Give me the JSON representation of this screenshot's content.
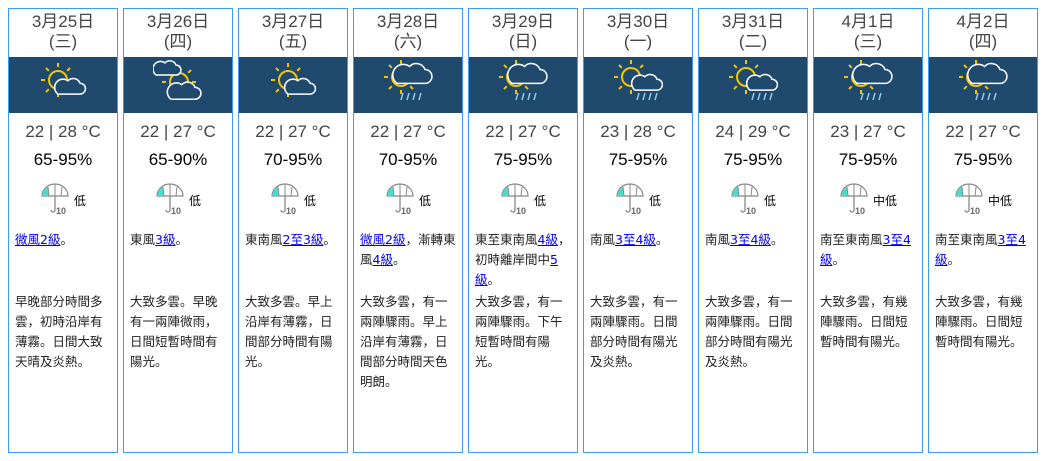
{
  "colors": {
    "border": "#3d9bf0",
    "icon_band": "#1f4a6e",
    "link": "#0000ee",
    "sun": "#f2c500",
    "psr_fill": "#40e0d0"
  },
  "days": [
    {
      "date": "3月25日",
      "weekday": "(三)",
      "icon": "sunny-periods",
      "temp": "22 | 28 °C",
      "rh": "65-95%",
      "psr": "低",
      "wind": [
        {
          "t": "微風2級",
          "link": true
        },
        {
          "t": "。"
        }
      ],
      "desc": "早晚部分時間多雲，初時沿岸有薄霧。日間大致天晴及炎熱。"
    },
    {
      "date": "3月26日",
      "weekday": "(四)",
      "icon": "sunny-intervals",
      "temp": "22 | 27 °C",
      "rh": "65-90%",
      "psr": "低",
      "wind": [
        {
          "t": "東風"
        },
        {
          "t": "3級",
          "link": true
        },
        {
          "t": "。"
        }
      ],
      "desc": "大致多雲。早晚有一兩陣微雨，日間短暫時間有陽光。"
    },
    {
      "date": "3月27日",
      "weekday": "(五)",
      "icon": "sunny-periods",
      "temp": "22 | 27 °C",
      "rh": "70-95%",
      "psr": "低",
      "wind": [
        {
          "t": "東南風"
        },
        {
          "t": "2至3級",
          "link": true
        },
        {
          "t": "。"
        }
      ],
      "desc": "大致多雲。早上沿岸有薄霧，日間部分時間有陽光。"
    },
    {
      "date": "3月28日",
      "weekday": "(六)",
      "icon": "sunny-intervals-showers",
      "temp": "22 | 27 °C",
      "rh": "70-95%",
      "psr": "低",
      "wind": [
        {
          "t": "微風2級",
          "link": true
        },
        {
          "t": "，漸轉東風"
        },
        {
          "t": "4級",
          "link": true
        },
        {
          "t": "。"
        }
      ],
      "desc": "大致多雲，有一兩陣驟雨。早上沿岸有薄霧，日間部分時間天色明朗。"
    },
    {
      "date": "3月29日",
      "weekday": "(日)",
      "icon": "sunny-intervals-showers",
      "temp": "22 | 27 °C",
      "rh": "75-95%",
      "psr": "低",
      "wind": [
        {
          "t": "東至東南風"
        },
        {
          "t": "4級",
          "link": true
        },
        {
          "t": "，初時離岸間中"
        },
        {
          "t": "5級",
          "link": true
        },
        {
          "t": "。"
        }
      ],
      "desc": "大致多雲，有一兩陣驟雨。下午短暫時間有陽光。"
    },
    {
      "date": "3月30日",
      "weekday": "(一)",
      "icon": "sunny-periods-showers",
      "temp": "23 | 28 °C",
      "rh": "75-95%",
      "psr": "低",
      "wind": [
        {
          "t": "南風"
        },
        {
          "t": "3至4級",
          "link": true
        },
        {
          "t": "。"
        }
      ],
      "desc": "大致多雲，有一兩陣驟雨。日間部分時間有陽光及炎熱。"
    },
    {
      "date": "3月31日",
      "weekday": "(二)",
      "icon": "sunny-periods-showers",
      "temp": "24 | 29 °C",
      "rh": "75-95%",
      "psr": "低",
      "wind": [
        {
          "t": "南風"
        },
        {
          "t": "3至4級",
          "link": true
        },
        {
          "t": "。"
        }
      ],
      "desc": "大致多雲，有一兩陣驟雨。日間部分時間有陽光及炎熱。"
    },
    {
      "date": "4月1日",
      "weekday": "(三)",
      "icon": "sunny-intervals-showers",
      "temp": "23 | 27 °C",
      "rh": "75-95%",
      "psr": "中低",
      "wind": [
        {
          "t": "南至東南風"
        },
        {
          "t": "3至4級",
          "link": true
        },
        {
          "t": "。"
        }
      ],
      "desc": "大致多雲，有幾陣驟雨。日間短暫時間有陽光。"
    },
    {
      "date": "4月2日",
      "weekday": "(四)",
      "icon": "sunny-intervals-showers",
      "temp": "22 | 27 °C",
      "rh": "75-95%",
      "psr": "中低",
      "wind": [
        {
          "t": "南至東南風"
        },
        {
          "t": "3至4級",
          "link": true
        },
        {
          "t": "。"
        }
      ],
      "desc": "大致多雲，有幾陣驟雨。日間短暫時間有陽光。"
    }
  ]
}
